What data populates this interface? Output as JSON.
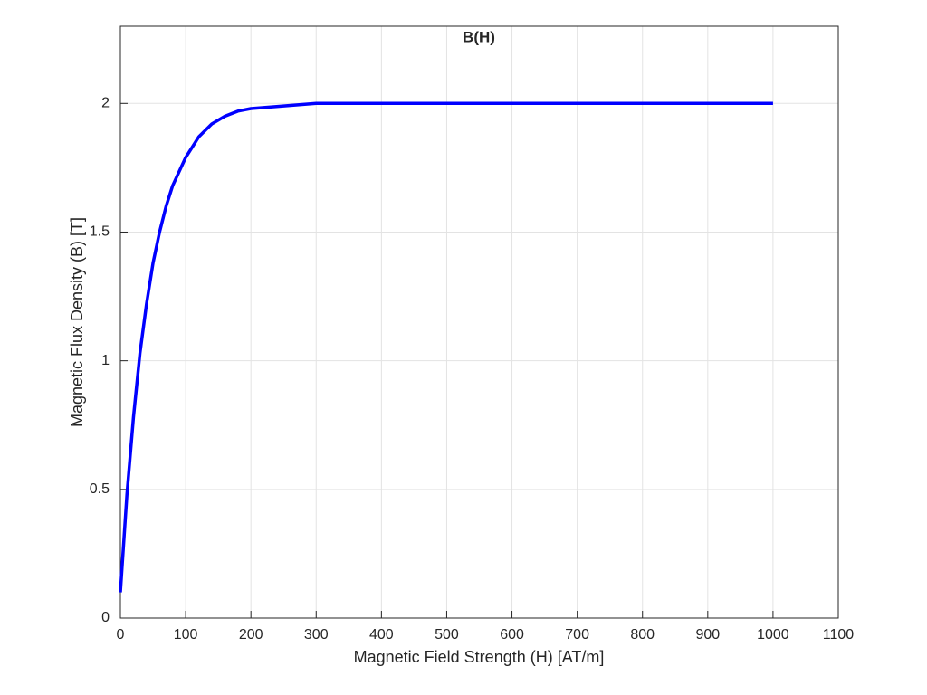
{
  "chart_data": {
    "type": "line",
    "title": "B(H)",
    "x_label": "Magnetic Field Strength (H) [AT/m]",
    "y_label": "Magnetic Flux Density (B) [T]",
    "series": [
      {
        "color": "#0000ff",
        "x": [
          0,
          10,
          20,
          30,
          40,
          50,
          60,
          70,
          80,
          100,
          120,
          140,
          160,
          180,
          200,
          250,
          300,
          400,
          500,
          600,
          700,
          800,
          900,
          1000
        ],
        "values": [
          0.1,
          0.48,
          0.78,
          1.03,
          1.22,
          1.38,
          1.5,
          1.6,
          1.68,
          1.79,
          1.87,
          1.92,
          1.95,
          1.97,
          1.98,
          1.99,
          2.0,
          2.0,
          2.0,
          2.0,
          2.0,
          2.0,
          2.0,
          2.0
        ]
      }
    ],
    "xlim": [
      0,
      1100
    ],
    "xticks": [
      0,
      100,
      200,
      300,
      400,
      500,
      600,
      700,
      800,
      900,
      1000,
      1100
    ],
    "ylim": [
      0,
      2.3
    ],
    "yticks": [
      0,
      0.5,
      1,
      1.5,
      2
    ],
    "grid": true
  }
}
